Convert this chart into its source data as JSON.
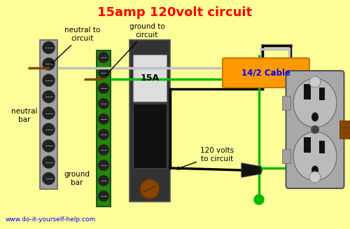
{
  "title": "15amp 120volt circuit",
  "bg_color": "#FFFF99",
  "title_color": "#FF0000",
  "url_text": "www.do-it-yourself-help.com",
  "url_color": "#0000FF",
  "cable_label": "14/2 Cable",
  "cable_label_color": "#0000FF",
  "cable_box_color": "#FF9900",
  "breaker_label": "15A",
  "wire_white_color": "#C0C0C0",
  "wire_black_color": "#000000",
  "wire_green_color": "#00BB00",
  "wire_brown_color": "#884400",
  "neutral_bar_color": "#A0A0A0",
  "neutral_bar_edge": "#666666",
  "ground_bar_color": "#228800",
  "ground_bar_edge": "#004400",
  "breaker_body_color": "#333333",
  "breaker_edge_color": "#555555",
  "outlet_body_color": "#A8A8A8",
  "screw_dark": "#222222",
  "screw_edge": "#444444",
  "lbl_box_color": "#DDDDDD",
  "knob_color": "#884400",
  "knob_edge": "#553300"
}
